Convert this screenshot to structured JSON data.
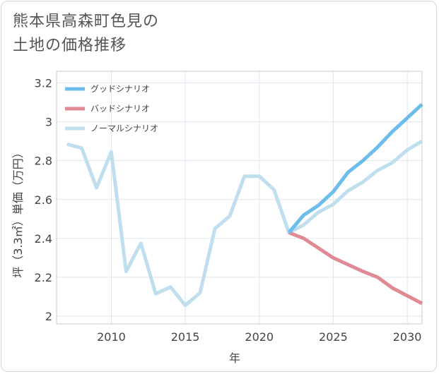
{
  "chart_data": {
    "type": "line",
    "title_lines": [
      "熊本県高森町色見の",
      "土地の価格推移"
    ],
    "xlabel": "年",
    "ylabel": "坪（3.3㎡）単価（万円）",
    "xlim": [
      2006.3,
      2031
    ],
    "ylim": [
      1.96,
      3.26
    ],
    "xticks": [
      2010,
      2015,
      2020,
      2025,
      2030
    ],
    "yticks": [
      2,
      2.2,
      2.4,
      2.6,
      2.8,
      3,
      3.2
    ],
    "ytick_labels": [
      "2",
      "2.2",
      "2.4",
      "2.6",
      "2.8",
      "3",
      "3.2"
    ],
    "grid": true,
    "legend_position": "top-left",
    "series": [
      {
        "name": "グッドシナリオ",
        "color": "#6cbcec",
        "x": [
          2022,
          2023,
          2024,
          2025,
          2026,
          2027,
          2028,
          2029,
          2030,
          2031
        ],
        "y": [
          2.43,
          2.52,
          2.57,
          2.64,
          2.74,
          2.8,
          2.87,
          2.95,
          3.02,
          3.09
        ]
      },
      {
        "name": "バッドシナリオ",
        "color": "#e08a93",
        "x": [
          2022,
          2023,
          2024,
          2025,
          2026,
          2027,
          2028,
          2029,
          2030,
          2031
        ],
        "y": [
          2.43,
          2.4,
          2.35,
          2.3,
          2.265,
          2.23,
          2.2,
          2.145,
          2.105,
          2.065
        ]
      },
      {
        "name": "ノーマルシナリオ",
        "color": "#bfdfee",
        "x": [
          2007,
          2008,
          2009,
          2010,
          2011,
          2012,
          2013,
          2014,
          2015,
          2016,
          2017,
          2018,
          2019,
          2020,
          2021,
          2022,
          2023,
          2024,
          2025,
          2026,
          2027,
          2028,
          2029,
          2030,
          2031
        ],
        "y": [
          2.885,
          2.865,
          2.66,
          2.845,
          2.23,
          2.375,
          2.115,
          2.15,
          2.055,
          2.12,
          2.45,
          2.515,
          2.72,
          2.72,
          2.65,
          2.43,
          2.47,
          2.535,
          2.575,
          2.645,
          2.69,
          2.75,
          2.79,
          2.855,
          2.9
        ]
      }
    ]
  }
}
